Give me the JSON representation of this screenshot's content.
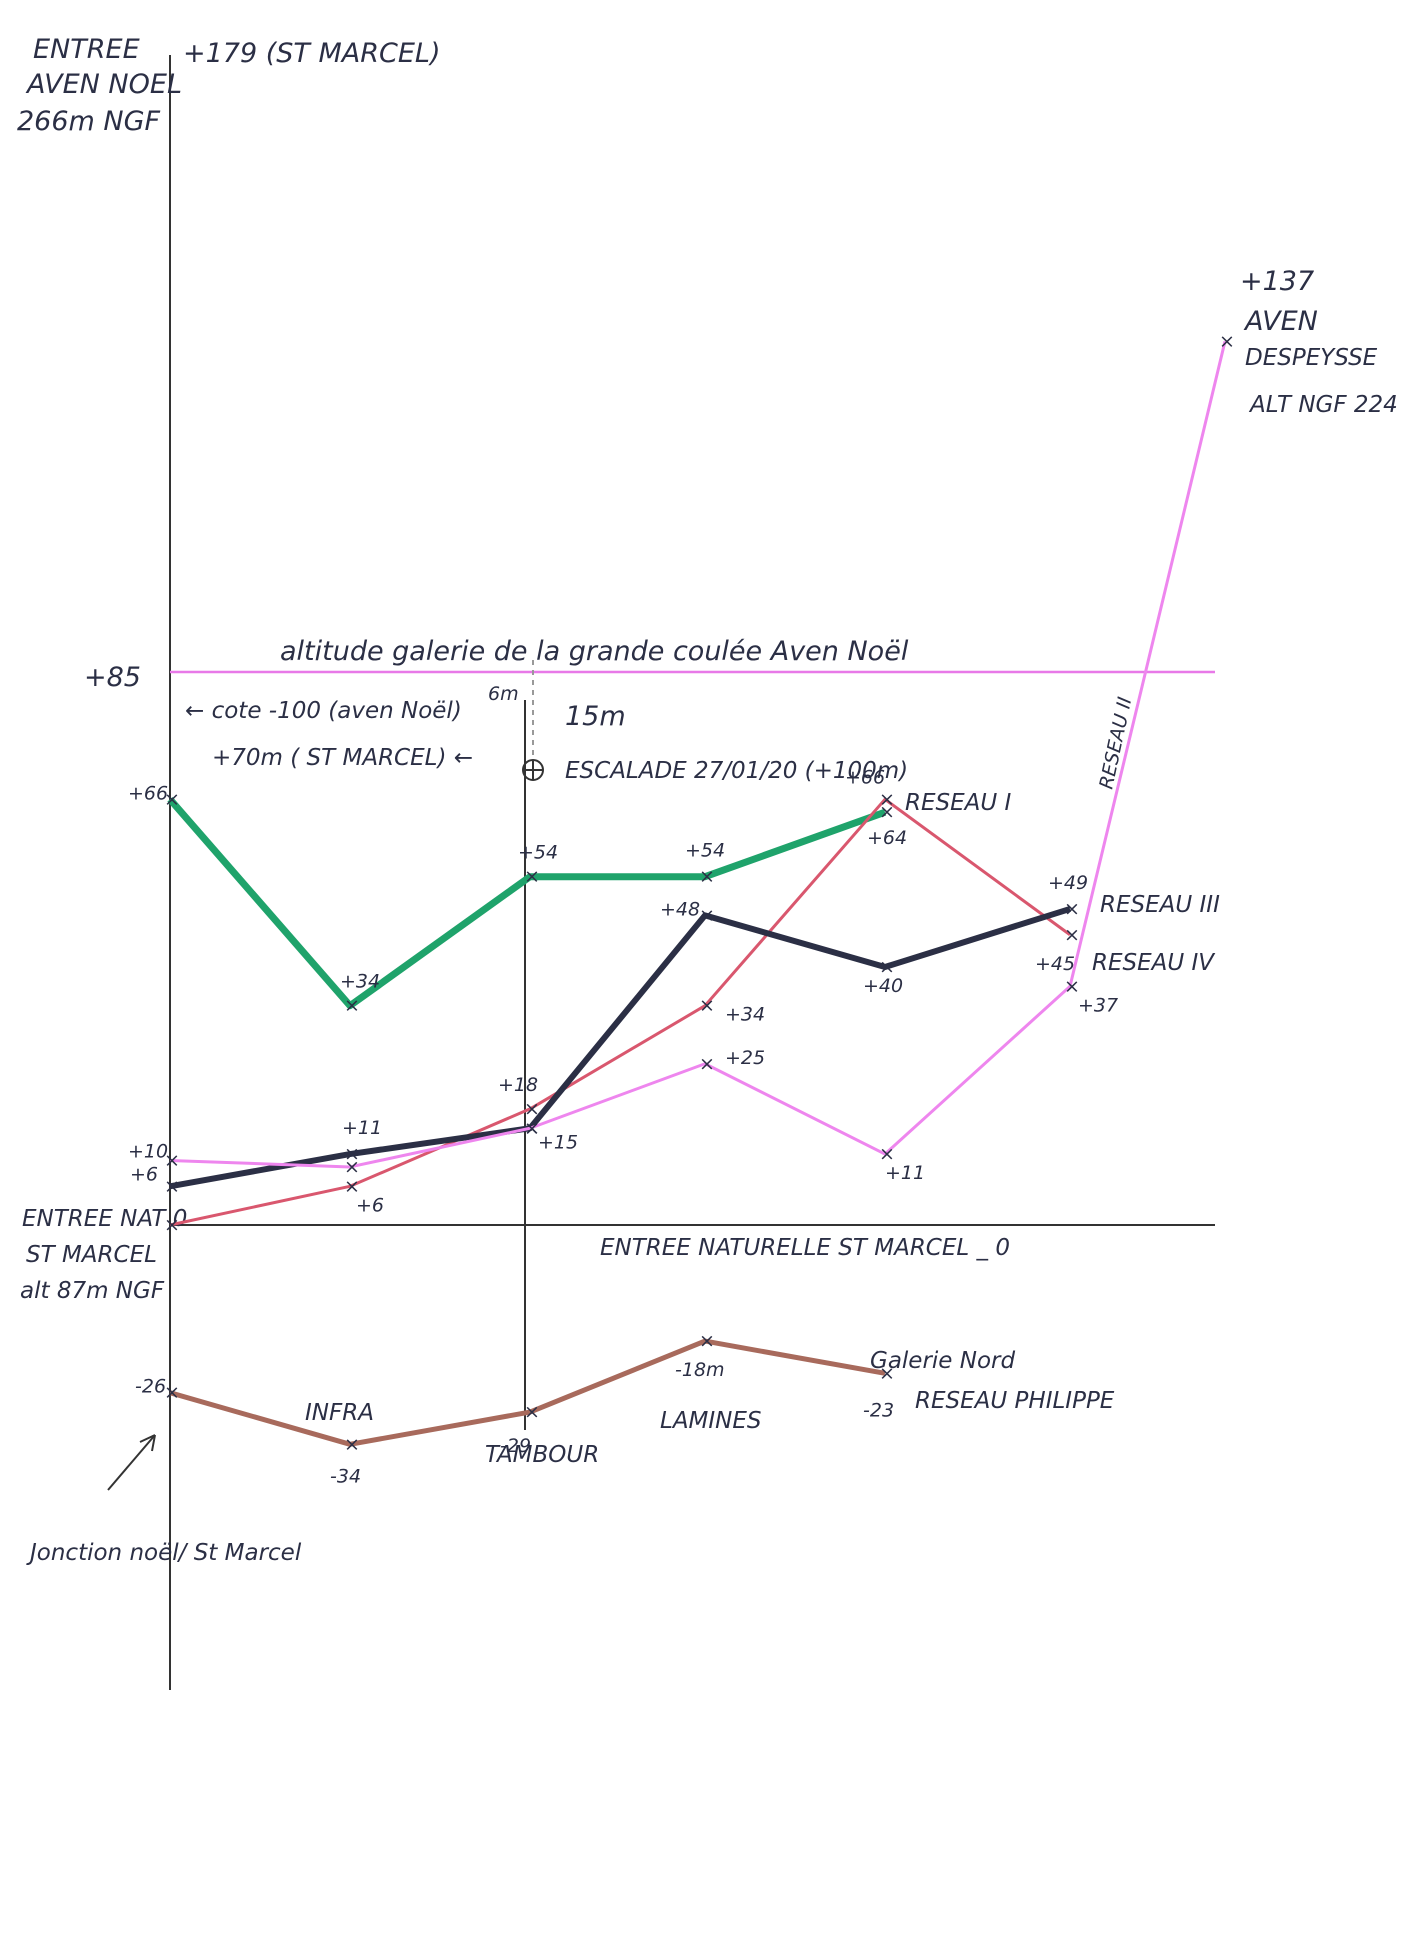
{
  "chart_data": {
    "type": "line",
    "x": [
      "ENTREE NAT",
      "INFRA",
      "TAMBOUR",
      "LAMINES",
      "",
      "",
      ""
    ],
    "ylim": [
      -30,
      180
    ],
    "grid": false,
    "y_axis_labels": {
      "top_left": [
        "ENTREE",
        "AVEN NOEL",
        "266m NGF"
      ],
      "top_value": "+179 (ST MARCEL)",
      "origin": [
        "ENTREE NAT 0",
        "ST MARCEL",
        "alt 87m NGF"
      ],
      "origin_value": 0,
      "ref_85": "+85"
    },
    "reference_lines": [
      {
        "y": 85,
        "label": "altitude galerie de la grande coulée Aven Noël",
        "color": "#e879e8"
      },
      {
        "y": 0,
        "label": "ENTREE NATURELLE ST MARCEL _ 0",
        "color": "#333333"
      }
    ],
    "annotations": {
      "cote": "← cote -100 (aven Noël)",
      "plus70": "+70m ( ST MARCEL) ←",
      "six_m": "6m",
      "fifteen_m": "15m",
      "escalade": "ESCALADE 27/01/20 (+100m)",
      "aven_despeysse": [
        "+137",
        "AVEN",
        "DESPEYSSE",
        "ALT NGF 224"
      ],
      "junction": "Jonction noël/ St Marcel",
      "galerie_nord": "Galerie Nord",
      "reseau_philippe": "RESEAU PHILIPPE",
      "reseau_II": "RESEAU II"
    },
    "series": [
      {
        "name": "",
        "color": "#1fa36b",
        "points": [
          [
            0,
            66
          ],
          [
            1,
            34
          ],
          [
            2,
            54
          ],
          [
            3,
            54
          ],
          [
            4,
            64
          ]
        ],
        "labels": [
          "+66",
          "+34",
          "+54",
          "+54",
          "+64"
        ]
      },
      {
        "name": "RESEAU I",
        "color": "#d9576e",
        "points": [
          [
            0,
            0
          ],
          [
            1,
            6
          ],
          [
            2,
            18
          ],
          [
            3,
            34
          ],
          [
            4,
            66
          ],
          [
            5,
            45
          ]
        ],
        "labels": [
          "",
          "+6",
          "+18",
          "+34",
          "+66",
          "+45"
        ]
      },
      {
        "name": "RESEAU III",
        "color": "#2b2f45",
        "points": [
          [
            0,
            6
          ],
          [
            1,
            11
          ],
          [
            2,
            15
          ],
          [
            3,
            48
          ],
          [
            4,
            40
          ],
          [
            5,
            49
          ]
        ],
        "labels": [
          "+6",
          "+11",
          "+15",
          "+48",
          "+40",
          "+49"
        ]
      },
      {
        "name": "RESEAU IV",
        "color": "#ee86ee",
        "points": [
          [
            0,
            10
          ],
          [
            1,
            9
          ],
          [
            2,
            15
          ],
          [
            3,
            25
          ],
          [
            4,
            11
          ],
          [
            5,
            37
          ],
          [
            6,
            137
          ]
        ],
        "labels": [
          "+10",
          "",
          "",
          "+25",
          "+11",
          "+37",
          ""
        ]
      },
      {
        "name": "",
        "color": "#a86a5c",
        "points": [
          [
            0,
            -26
          ],
          [
            1,
            -34
          ],
          [
            2,
            -29
          ],
          [
            3,
            -18
          ],
          [
            4,
            -23
          ]
        ],
        "labels": [
          "-26",
          "-34",
          "-29",
          "-18m",
          "-23"
        ]
      }
    ]
  }
}
